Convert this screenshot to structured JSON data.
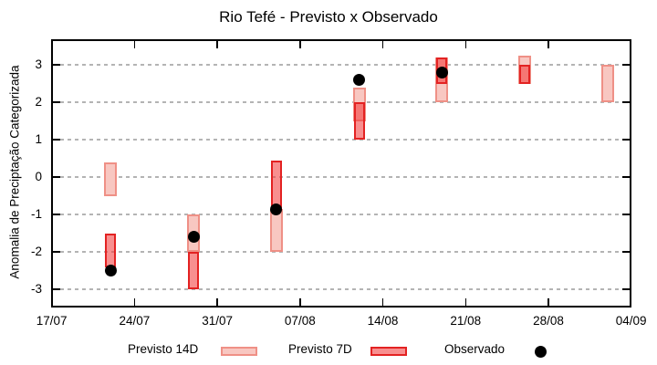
{
  "title": "Rio Tefé - Previsto x Observado",
  "y_axis_label": "Anomalia de Preciptação Categorizada",
  "legend": [
    {
      "label": "Previsto 14D"
    },
    {
      "label": "Previsto 7D"
    },
    {
      "label": "Observado"
    }
  ],
  "colors": {
    "p14_fill": "#f8c7c1",
    "p14_border": "#ef9086",
    "p7_fill": "rgba(242,58,58,0.57)",
    "p7_border": "#e32222",
    "observado_fill": "#000000",
    "grid": "#b4b4b4",
    "axis": "#000000"
  },
  "chart_data": {
    "type": "bar",
    "subtype": "floating-range-boxes-with-scatter-overlay",
    "title": "Rio Tefé - Previsto x Observado",
    "xlabel": "",
    "ylabel": "Anomalia de Preciptação Categorizada",
    "x_tick_labels": [
      "17/07",
      "24/07",
      "31/07",
      "07/08",
      "14/08",
      "21/08",
      "28/08",
      "04/09"
    ],
    "x_tick_day_offsets": [
      0,
      7,
      14,
      21,
      28,
      35,
      42,
      49
    ],
    "y_ticks": [
      -3,
      -2,
      -1,
      0,
      1,
      2,
      3
    ],
    "ylim": [
      -3.5,
      3.68
    ],
    "xlim_days": [
      0,
      49
    ],
    "grid": "horizontal-dashed",
    "legend_position": "below-plot",
    "series": [
      {
        "name": "Previsto 14D",
        "kind": "range-box"
      },
      {
        "name": "Previsto 7D",
        "kind": "range-box"
      },
      {
        "name": "Observado",
        "kind": "scatter"
      }
    ],
    "points": [
      {
        "date": "22/07",
        "day": 5,
        "previsto_14d": [
          -0.5,
          0.4
        ],
        "previsto_7d": [
          -2.4,
          -1.5
        ],
        "observado": -2.5
      },
      {
        "date": "29/07",
        "day": 12,
        "previsto_14d": [
          -2.0,
          -1.0
        ],
        "previsto_7d": [
          -3.0,
          -2.0
        ],
        "observado": -1.6
      },
      {
        "date": "05/08",
        "day": 19,
        "previsto_14d": [
          -2.0,
          -0.85
        ],
        "previsto_7d": [
          -0.85,
          0.45
        ],
        "observado": -0.85
      },
      {
        "date": "12/08",
        "day": 26,
        "previsto_14d": [
          1.5,
          2.4
        ],
        "previsto_7d": [
          1.0,
          2.0
        ],
        "observado": 2.6
      },
      {
        "date": "19/08",
        "day": 33,
        "previsto_14d": [
          2.0,
          3.2
        ],
        "previsto_7d": [
          2.5,
          3.2
        ],
        "observado": 2.8
      },
      {
        "date": "26/08",
        "day": 40,
        "previsto_14d": [
          2.5,
          3.25
        ],
        "previsto_7d": [
          2.5,
          3.0
        ],
        "observado": null
      },
      {
        "date": "02/09",
        "day": 47,
        "previsto_14d": [
          2.0,
          3.0
        ],
        "previsto_7d": null,
        "observado": null
      }
    ]
  }
}
